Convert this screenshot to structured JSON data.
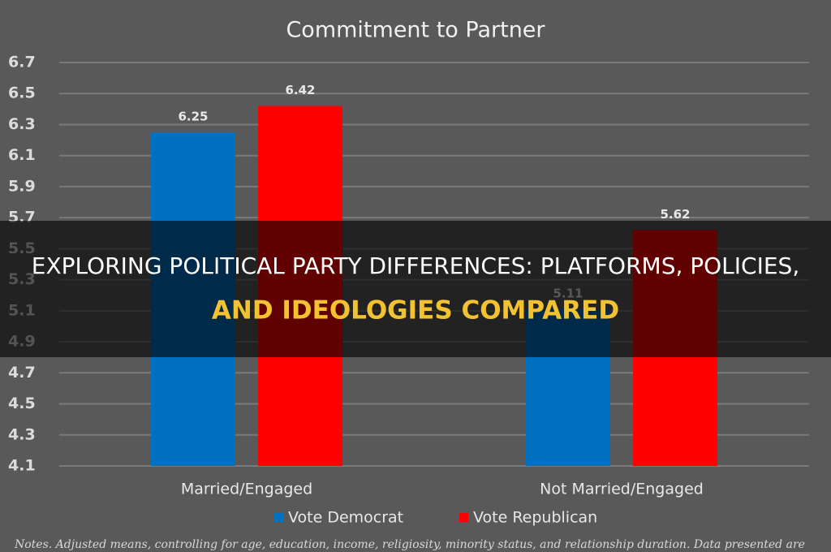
{
  "chart_data": {
    "type": "bar",
    "title": "Commitment to Partner",
    "categories": [
      "Married/Engaged",
      "Not Married/Engaged"
    ],
    "series": [
      {
        "name": "Vote Democrat",
        "color": "#0070c0",
        "values": [
          6.25,
          5.11
        ]
      },
      {
        "name": "Vote Republican",
        "color": "#ff0000",
        "values": [
          6.42,
          5.62
        ]
      }
    ],
    "ylim": [
      4.1,
      6.7
    ],
    "yticks": [
      4.1,
      4.3,
      4.5,
      4.7,
      4.9,
      5.1,
      5.3,
      5.5,
      5.7,
      5.9,
      6.1,
      6.3,
      6.5,
      6.7
    ],
    "grid": true,
    "legend": "bottom",
    "notes": "Notes. Adjusted means, controlling for age, education, income, religiosity, minority status, and relationship duration. Data presented are"
  },
  "banner": {
    "lines": [
      "EXPLORING POLITICAL PARTY DIFFERENCES: PLATFORMS, POLICIES,",
      "AND IDEOLOGIES COMPARED"
    ]
  }
}
